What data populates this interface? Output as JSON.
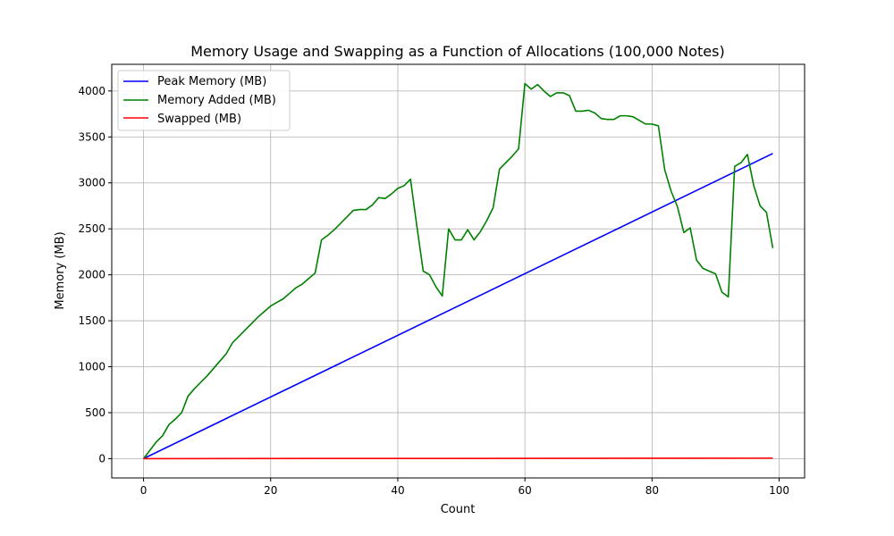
{
  "chart_data": {
    "type": "line",
    "title": "Memory Usage and Swapping as a Function of Allocations (100,000 Notes)",
    "xlabel": "Count",
    "ylabel": "Memory (MB)",
    "xlim": [
      -5,
      104
    ],
    "ylim": [
      -210,
      4290
    ],
    "xticks": [
      0,
      20,
      40,
      60,
      80,
      100
    ],
    "yticks": [
      0,
      500,
      1000,
      1500,
      2000,
      2500,
      3000,
      3500,
      4000
    ],
    "grid": true,
    "legend_position": "top-left",
    "series": [
      {
        "name": "Peak Memory (MB)",
        "color": "#0000ff",
        "x": [
          0,
          99
        ],
        "y": [
          0,
          3320
        ]
      },
      {
        "name": "Memory Added (MB)",
        "color": "#008000",
        "x": [
          0,
          1,
          2,
          3,
          4,
          5,
          6,
          7,
          8,
          9,
          10,
          11,
          12,
          13,
          14,
          15,
          16,
          17,
          18,
          19,
          20,
          21,
          22,
          23,
          24,
          25,
          26,
          27,
          28,
          29,
          30,
          31,
          32,
          33,
          34,
          35,
          36,
          37,
          38,
          39,
          40,
          41,
          42,
          43,
          44,
          45,
          46,
          47,
          48,
          49,
          50,
          51,
          52,
          53,
          54,
          55,
          56,
          57,
          58,
          59,
          60,
          61,
          62,
          63,
          64,
          65,
          66,
          67,
          68,
          69,
          70,
          71,
          72,
          73,
          74,
          75,
          76,
          77,
          78,
          79,
          80,
          81,
          82,
          83,
          84,
          85,
          86,
          87,
          88,
          89,
          90,
          91,
          92,
          93,
          94,
          95,
          96,
          97,
          98,
          99
        ],
        "y": [
          0,
          90,
          180,
          250,
          370,
          430,
          500,
          680,
          760,
          830,
          900,
          980,
          1060,
          1140,
          1260,
          1330,
          1400,
          1470,
          1540,
          1600,
          1660,
          1700,
          1740,
          1800,
          1860,
          1900,
          1960,
          2020,
          2380,
          2430,
          2490,
          2560,
          2630,
          2700,
          2710,
          2710,
          2760,
          2840,
          2830,
          2880,
          2940,
          2970,
          3040,
          2530,
          2040,
          2000,
          1870,
          1770,
          2500,
          2380,
          2380,
          2490,
          2380,
          2470,
          2590,
          2730,
          3150,
          3220,
          3290,
          3370,
          4080,
          4020,
          4070,
          4000,
          3940,
          3980,
          3980,
          3950,
          3780,
          3780,
          3790,
          3760,
          3700,
          3690,
          3690,
          3730,
          3730,
          3720,
          3680,
          3640,
          3640,
          3620,
          3140,
          2910,
          2740,
          2460,
          2510,
          2160,
          2070,
          2040,
          2010,
          1810,
          1760,
          3180,
          3220,
          3310,
          2970,
          2750,
          2680,
          2290
        ]
      },
      {
        "name": "Swapped (MB)",
        "color": "#ff0000",
        "x": [
          0,
          99
        ],
        "y": [
          0,
          5
        ]
      }
    ]
  }
}
